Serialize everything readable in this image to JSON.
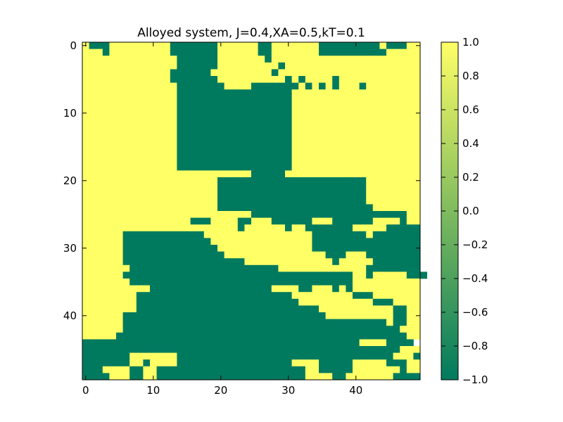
{
  "chart_data": {
    "type": "heatmap",
    "title": "Alloyed system, J=0.4,XA=0.5,kT=0.1",
    "xlabel": "",
    "ylabel": "",
    "grid_size": 50,
    "x_range": [
      -0.5,
      49.5
    ],
    "y_range": [
      49.5,
      -0.5
    ],
    "x_ticks": [
      0,
      10,
      20,
      30,
      40
    ],
    "x_tick_labels": [
      "0",
      "10",
      "20",
      "30",
      "40"
    ],
    "y_ticks": [
      0,
      10,
      20,
      30,
      40
    ],
    "y_tick_labels": [
      "0",
      "10",
      "20",
      "30",
      "40"
    ],
    "colorbar": {
      "range": [
        -1.0,
        1.0
      ],
      "ticks": [
        1.0,
        0.8,
        0.6,
        0.4,
        0.2,
        0.0,
        -0.2,
        -0.4,
        -0.6,
        -0.8,
        -1.0
      ],
      "tick_labels": [
        "1.0",
        "0.8",
        "0.6",
        "0.4",
        "0.2",
        "0.0",
        "−0.2",
        "−0.4",
        "−0.6",
        "−0.8",
        "−1.0"
      ],
      "color_low": "#007a5e",
      "color_mid": "#80bb5e",
      "color_high": "#ffff66"
    },
    "legend": "colorbar-right",
    "encoding": "#=-1 (green), .=+1 (yellow); row 0 at top",
    "rows": [
      ".###.........#######......##.......#########.###..",
      "...#.........#######......##.......##########.....",
      "..............######.......#......................",
      "..............######.........#....................",
      ".............######.........#.....................",
      ".............#######..........#.#....#............",
      "..............#######....#######.#.#.#...#........",
      "..............#################...................",
      "..............#################...................",
      "..............#################...................",
      "..............#################...................",
      "..............#################...................",
      "..............#################...................",
      "..............#################...................",
      "..............#################...................",
      "..............#################...................",
      "..............#################...................",
      "..............#################...................",
      "..............#################...................",
      ".........................#####....................",
      "....................######################........",
      "....................######################........",
      "....................######################........",
      "....................######################........",
      "....................#######################.......",
      ".........................#######################..",
      "................###....##...######...######....#..",
      ".......................#......#..#######.....#####",
      "......############................########.#######",
      "......#############...............################",
      "......##############..............################",
      "......###############...............###...########",
      "......##################.............#.....#######",
      ".......######################.............########",
      "......##################################..#.....###",
      ".......#################################..........",
      "..........##################....##...#.#..........",
      "........#######################.........###.......",
      "........########################...........###....",
      "........###########################...........##..",
      "......##############################..........##..",
      "......#######################################.##..",
      "......#########################################...",
      ".....###########################################..",
      "#########################################....####",
      "###############################################...",
      "#######.......################################...#",
      "#######..#....#################....#####.....###..",
      "###....##..######################..#####.......#..",
      "####...##..######################....##.......####"
    ]
  }
}
